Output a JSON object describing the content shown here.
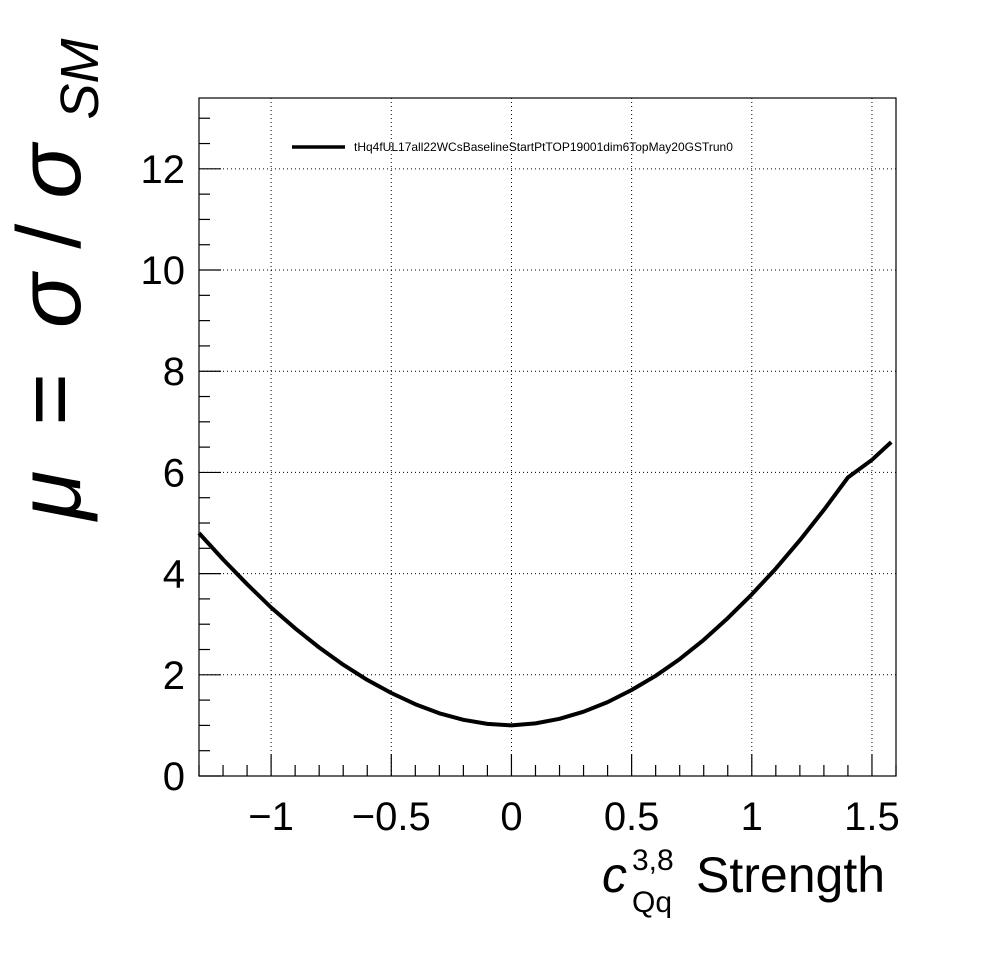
{
  "chart_data": {
    "type": "line",
    "ylabel_mu": "μ",
    "ylabel_eq": "=",
    "ylabel_sigma": "σ",
    "ylabel_slash": "/",
    "ylabel_sigma2": "σ",
    "ylabel_sub": "SM",
    "xlabel_c": "c",
    "xlabel_sup": "3,8",
    "xlabel_sub": "Qq",
    "xlabel_text": "Strength",
    "xlim": [
      -1.3,
      1.6
    ],
    "ylim": [
      0,
      13.4
    ],
    "grid": true,
    "legend_position": "top",
    "xticks": [
      -1,
      -0.5,
      0,
      0.5,
      1,
      1.5
    ],
    "xtick_labels": [
      "−1",
      "−0.5",
      "0",
      "0.5",
      "1",
      "1.5"
    ],
    "yticks": [
      0,
      2,
      4,
      6,
      8,
      10,
      12
    ],
    "ytick_labels": [
      "0",
      "2",
      "4",
      "6",
      "8",
      "10",
      "12"
    ],
    "series": [
      {
        "name": "tHq4fUL17all22WCsBaselineStartPtTOP19001dim6TopMay20GSTrun0",
        "color": "#000000",
        "x": [
          -1.3,
          -1.2,
          -1.1,
          -1.0,
          -0.9,
          -0.8,
          -0.7,
          -0.6,
          -0.5,
          -0.4,
          -0.3,
          -0.2,
          -0.1,
          0.0,
          0.1,
          0.2,
          0.3,
          0.4,
          0.5,
          0.6,
          0.7,
          0.8,
          0.9,
          1.0,
          1.1,
          1.2,
          1.3,
          1.4,
          1.5,
          1.58
        ],
        "y": [
          4.8,
          4.28,
          3.79,
          3.33,
          2.92,
          2.54,
          2.2,
          1.9,
          1.64,
          1.42,
          1.24,
          1.11,
          1.03,
          1.0,
          1.04,
          1.13,
          1.27,
          1.46,
          1.7,
          1.98,
          2.31,
          2.69,
          3.12,
          3.59,
          4.1,
          4.66,
          5.26,
          5.9,
          6.25,
          6.6
        ]
      }
    ]
  }
}
